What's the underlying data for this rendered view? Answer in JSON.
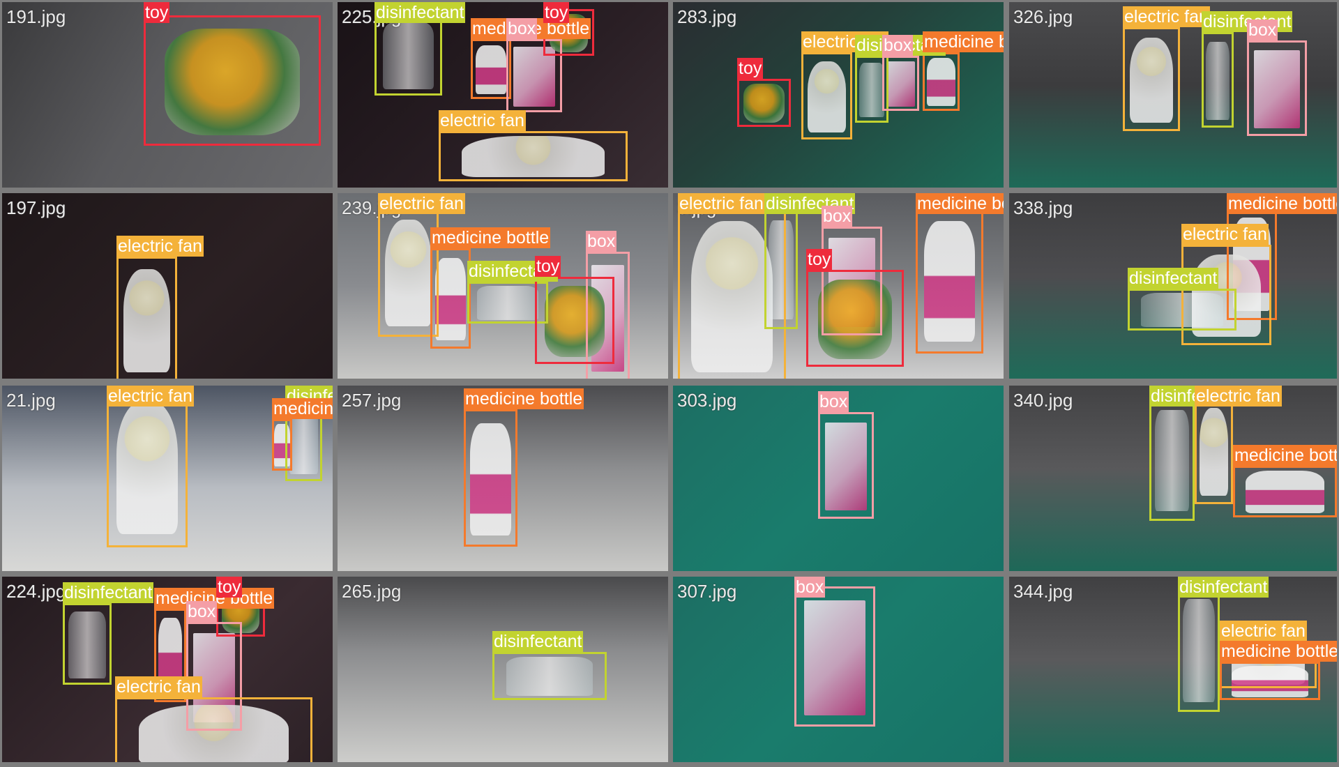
{
  "classes": {
    "toy": {
      "color": "#ee2b3c"
    },
    "disinfectant": {
      "color": "#c2d330"
    },
    "box": {
      "color": "#f49ea6"
    },
    "medicine bottle": {
      "color": "#f47a2c"
    },
    "electric fan": {
      "color": "#f4b23a"
    }
  },
  "tiles": [
    {
      "file": "191.jpg",
      "labels": [
        "toy"
      ]
    },
    {
      "file": "225.jpg",
      "labels": [
        "disinfectant",
        "medicine bottle",
        "box",
        "toy",
        "electric fan"
      ]
    },
    {
      "file": "283.jpg",
      "labels": [
        "toy",
        "electric fan",
        "disinfectant",
        "box",
        "medicine bottle"
      ]
    },
    {
      "file": "326.jpg",
      "labels": [
        "electric fan",
        "disinfectant",
        "box"
      ]
    },
    {
      "file": "197.jpg",
      "labels": [
        "electric fan"
      ]
    },
    {
      "file": "239.jpg",
      "labels": [
        "electric fan",
        "medicine bottle",
        "box",
        "disinfectant",
        "toy"
      ]
    },
    {
      "file": "3.jpg",
      "labels": [
        "electric fan",
        "disinfectant",
        "box",
        "toy",
        "medicine bottle"
      ]
    },
    {
      "file": "338.jpg",
      "labels": [
        "medicine bottle",
        "electric fan",
        "disinfectant"
      ]
    },
    {
      "file": "21.jpg",
      "labels": [
        "electric fan",
        "disinfectant",
        "medicine bottle"
      ]
    },
    {
      "file": "257.jpg",
      "labels": [
        "medicine bottle"
      ]
    },
    {
      "file": "303.jpg",
      "labels": [
        "box"
      ]
    },
    {
      "file": "340.jpg",
      "labels": [
        "disinfectant",
        "electric fan",
        "medicine bottle"
      ]
    },
    {
      "file": "224.jpg",
      "labels": [
        "disinfectant",
        "medicine bottle",
        "toy",
        "box",
        "electric fan"
      ]
    },
    {
      "file": "265.jpg",
      "labels": [
        "disinfectant"
      ]
    },
    {
      "file": "307.jpg",
      "labels": [
        "box"
      ]
    },
    {
      "file": "344.jpg",
      "labels": [
        "disinfectant",
        "electric fan",
        "medicine bottle"
      ]
    }
  ]
}
